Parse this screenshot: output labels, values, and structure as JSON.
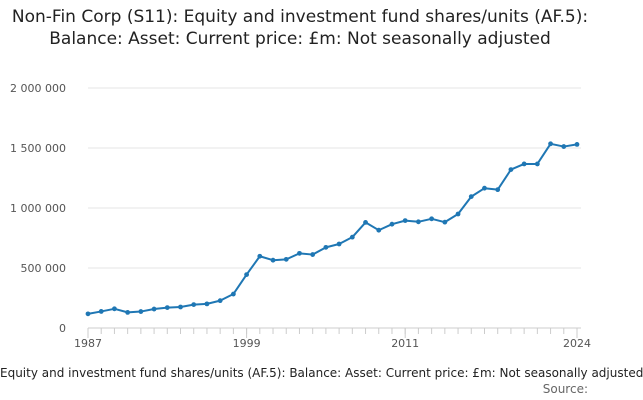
{
  "chart_data": {
    "type": "line",
    "title": "Non-Fin Corp (S11): Equity and investment fund shares/units (AF.5): Balance: Asset: Current price: £m: Not seasonally adjusted",
    "x": [
      1987,
      1988,
      1989,
      1990,
      1991,
      1992,
      1993,
      1994,
      1995,
      1996,
      1997,
      1998,
      1999,
      2000,
      2001,
      2002,
      2003,
      2004,
      2005,
      2006,
      2007,
      2008,
      2009,
      2010,
      2011,
      2012,
      2013,
      2014,
      2015,
      2016,
      2017,
      2018,
      2019,
      2020,
      2021,
      2022,
      2023,
      2024
    ],
    "series": [
      {
        "name": "Equity and investment fund shares/units (AF.5): Balance: Asset: Current price: £m: Not seasonally adjusted",
        "values": [
          118000,
          138000,
          160000,
          130000,
          137000,
          158000,
          170000,
          175000,
          195000,
          201000,
          228000,
          283000,
          445000,
          598000,
          565000,
          572000,
          622000,
          612000,
          672000,
          700000,
          757000,
          880000,
          815000,
          865000,
          895000,
          885000,
          910000,
          882000,
          950000,
          1095000,
          1165000,
          1153000,
          1320000,
          1367000,
          1367000,
          1535000,
          1512000,
          1530000
        ]
      }
    ],
    "yticks": [
      "0",
      "500 000",
      "1 000 000",
      "1 500 000",
      "2 000 000"
    ],
    "ytick_values": [
      0,
      500000,
      1000000,
      1500000,
      2000000
    ],
    "xtick_labels": [
      "1987",
      "1999",
      "2011",
      "2024"
    ],
    "xtick_values": [
      1987,
      1999,
      2011,
      2024
    ],
    "ylim": [
      0,
      2000000
    ],
    "xlim": [
      1987,
      2024
    ],
    "grid": true,
    "line_color": "#1f77b4",
    "source_label": "Source:"
  }
}
